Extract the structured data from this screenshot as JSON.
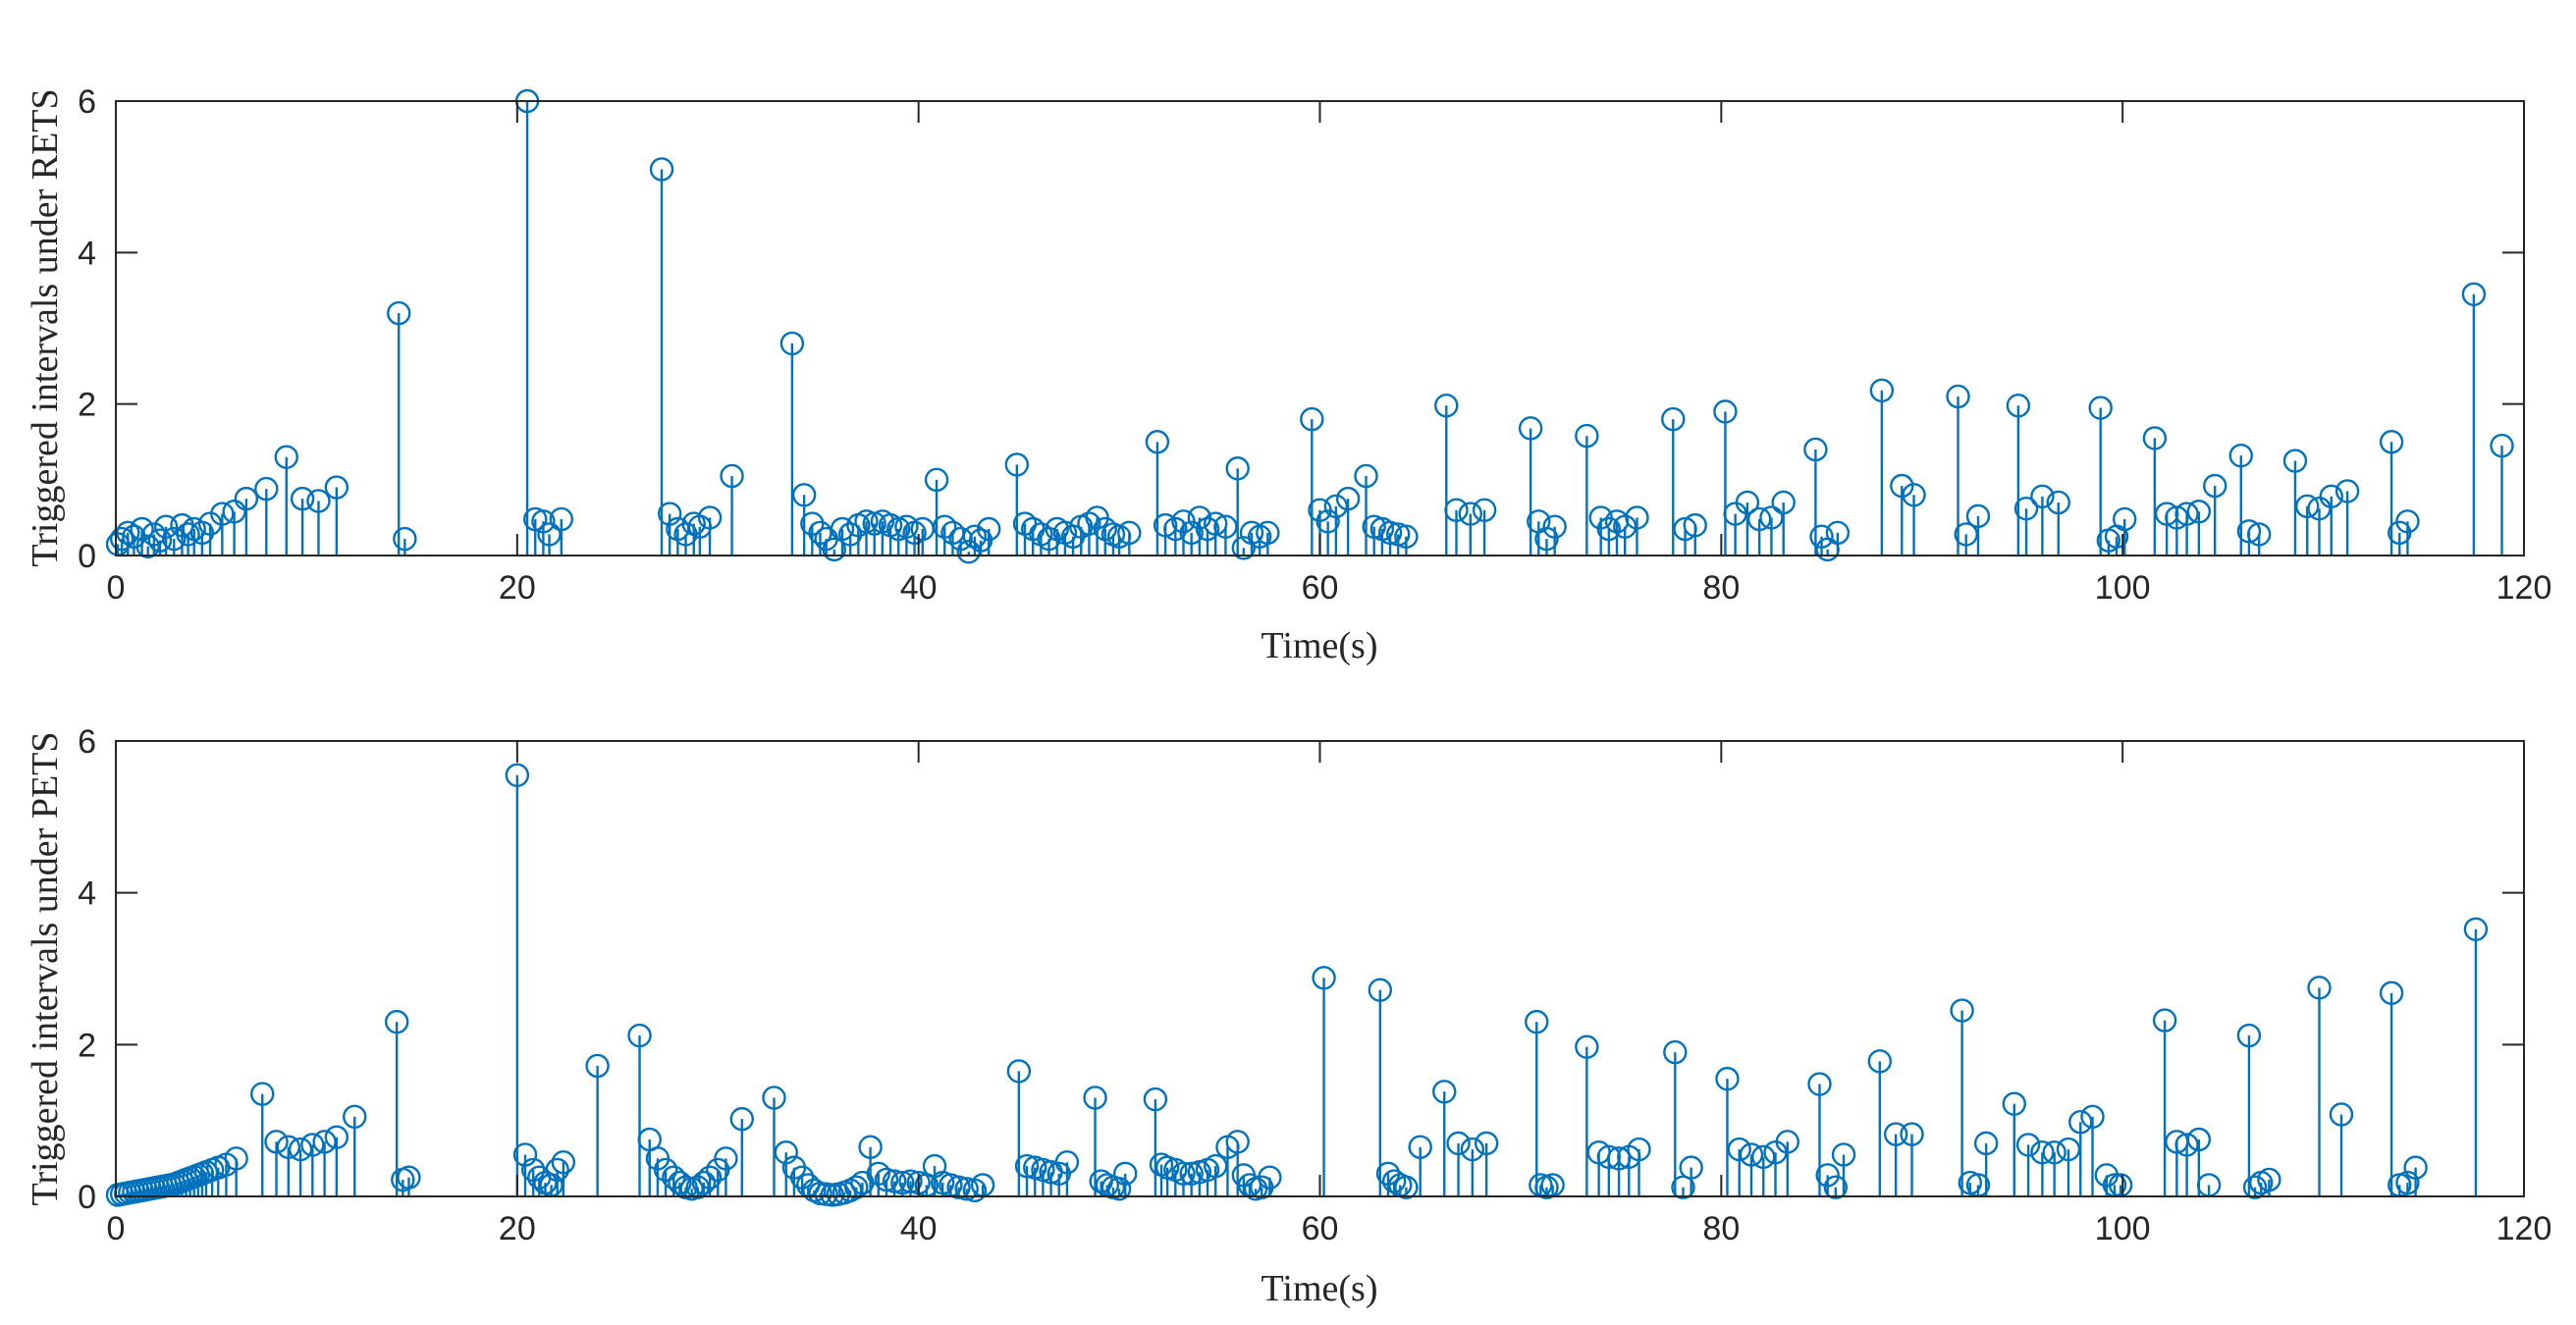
{
  "figure": {
    "series_color": "#0072BD",
    "axis_color": "#262626"
  },
  "chart_data": [
    {
      "type": "stem",
      "ylabel": "Triggered intervals under RETS",
      "xlabel": "Time(s)",
      "xlim": [
        0,
        120
      ],
      "ylim": [
        0,
        6
      ],
      "xticks": [
        0,
        20,
        40,
        60,
        80,
        100,
        120
      ],
      "yticks": [
        0,
        2,
        4,
        6
      ],
      "x": [
        0.1,
        0.3,
        0.6,
        0.9,
        1.3,
        1.6,
        1.9,
        2.2,
        2.5,
        2.9,
        3.3,
        3.6,
        3.9,
        4.3,
        4.7,
        5.3,
        5.9,
        6.5,
        7.5,
        8.5,
        9.3,
        10.1,
        11.0,
        14.1,
        14.4,
        20.5,
        20.9,
        21.3,
        21.6,
        22.2,
        27.2,
        27.6,
        28.0,
        28.4,
        28.8,
        29.1,
        29.6,
        30.7,
        33.7,
        34.3,
        34.7,
        35.1,
        35.4,
        35.8,
        36.2,
        36.6,
        37.0,
        37.4,
        37.8,
        38.2,
        38.6,
        39.0,
        39.4,
        39.8,
        40.2,
        40.9,
        41.3,
        41.7,
        42.1,
        42.5,
        42.8,
        43.1,
        43.5,
        44.9,
        45.3,
        45.7,
        46.1,
        46.5,
        46.9,
        47.3,
        47.7,
        48.1,
        48.5,
        48.9,
        49.3,
        49.7,
        50.0,
        50.5,
        51.9,
        52.3,
        52.8,
        53.2,
        53.6,
        54.0,
        54.4,
        54.8,
        55.3,
        55.9,
        56.2,
        56.6,
        57.0,
        57.4,
        59.6,
        60.0,
        60.4,
        60.8,
        61.4,
        62.3,
        62.7,
        63.1,
        63.5,
        63.9,
        64.3,
        66.3,
        66.8,
        67.5,
        68.2,
        70.5,
        70.9,
        71.3,
        71.7,
        73.3,
        74.0,
        74.4,
        74.8,
        75.2,
        75.8,
        77.6,
        78.2,
        78.7,
        80.2,
        80.7,
        81.3,
        81.9,
        82.5,
        83.1,
        84.7,
        85.0,
        85.3,
        85.8,
        88.0,
        89.0,
        89.6,
        91.8,
        92.2,
        92.8,
        94.8,
        95.2,
        96.0,
        96.8,
        98.9,
        99.3,
        99.7,
        100.1,
        101.6,
        102.2,
        102.7,
        103.2,
        103.8,
        104.6,
        105.9,
        106.3,
        106.8,
        108.6,
        109.2,
        109.8,
        110.4,
        111.2,
        113.4,
        113.8,
        114.2,
        117.5,
        118.9
      ],
      "y": [
        0.15,
        0.22,
        0.3,
        0.25,
        0.35,
        0.12,
        0.28,
        0.2,
        0.38,
        0.22,
        0.4,
        0.28,
        0.35,
        0.3,
        0.42,
        0.55,
        0.58,
        0.75,
        0.88,
        1.3,
        0.75,
        0.72,
        0.9,
        3.2,
        0.22,
        6.0,
        0.48,
        0.45,
        0.28,
        0.48,
        5.1,
        0.55,
        0.35,
        0.28,
        0.42,
        0.38,
        0.5,
        1.05,
        2.8,
        0.8,
        0.42,
        0.3,
        0.22,
        0.08,
        0.35,
        0.28,
        0.4,
        0.45,
        0.42,
        0.45,
        0.4,
        0.35,
        0.38,
        0.3,
        0.35,
        1.0,
        0.38,
        0.3,
        0.22,
        0.05,
        0.25,
        0.2,
        0.35,
        1.2,
        0.42,
        0.35,
        0.28,
        0.22,
        0.35,
        0.3,
        0.25,
        0.38,
        0.42,
        0.5,
        0.35,
        0.28,
        0.25,
        0.3,
        1.5,
        0.4,
        0.35,
        0.45,
        0.3,
        0.5,
        0.35,
        0.42,
        0.38,
        1.15,
        0.1,
        0.3,
        0.25,
        0.3,
        1.8,
        0.6,
        0.45,
        0.65,
        0.75,
        1.05,
        0.38,
        0.35,
        0.3,
        0.28,
        0.25,
        1.98,
        0.6,
        0.55,
        0.6,
        1.68,
        0.45,
        0.22,
        0.38,
        1.58,
        0.5,
        0.35,
        0.45,
        0.38,
        0.5,
        1.8,
        0.35,
        0.4,
        1.9,
        0.55,
        0.7,
        0.48,
        0.5,
        0.7,
        1.4,
        0.25,
        0.08,
        0.3,
        2.18,
        0.92,
        0.8,
        2.1,
        0.28,
        0.52,
        1.98,
        0.62,
        0.78,
        0.7,
        1.95,
        0.2,
        0.25,
        0.48,
        1.55,
        0.55,
        0.5,
        0.55,
        0.58,
        0.92,
        1.32,
        0.32,
        0.28,
        1.25,
        0.65,
        0.62,
        0.78,
        0.85,
        1.5,
        0.3,
        0.45,
        3.45,
        1.45
      ]
    },
    {
      "type": "stem",
      "ylabel": "Triggered intervals under PETS",
      "xlabel": "Time(s)",
      "xlim": [
        0,
        120
      ],
      "ylim": [
        0,
        6
      ],
      "xticks": [
        0,
        20,
        40,
        60,
        80,
        100,
        120
      ],
      "yticks": [
        0,
        2,
        4,
        6
      ],
      "x": [
        0.1,
        0.3,
        0.5,
        0.7,
        0.9,
        1.1,
        1.3,
        1.5,
        1.7,
        1.9,
        2.1,
        2.3,
        2.5,
        2.7,
        2.9,
        3.1,
        3.3,
        3.5,
        3.7,
        3.9,
        4.1,
        4.3,
        4.5,
        4.8,
        5.1,
        5.5,
        6.0,
        7.3,
        8.0,
        8.6,
        9.2,
        9.8,
        10.4,
        11.0,
        11.9,
        14.0,
        14.3,
        14.6,
        20.0,
        20.4,
        20.8,
        21.1,
        21.4,
        21.7,
        22.0,
        22.3,
        24.0,
        26.1,
        26.6,
        27.0,
        27.4,
        27.8,
        28.1,
        28.4,
        28.7,
        29.0,
        29.3,
        29.6,
        30.0,
        30.4,
        31.2,
        32.8,
        33.4,
        33.8,
        34.2,
        34.5,
        34.8,
        35.1,
        35.4,
        35.7,
        36.0,
        36.3,
        36.6,
        36.9,
        37.2,
        37.6,
        38.0,
        38.4,
        38.8,
        39.2,
        39.6,
        40.0,
        40.4,
        40.8,
        41.2,
        41.6,
        42.0,
        42.4,
        42.8,
        43.2,
        45.0,
        45.4,
        45.8,
        46.2,
        46.6,
        47.0,
        47.4,
        48.8,
        49.1,
        49.4,
        49.7,
        50.0,
        50.3,
        51.8,
        52.1,
        52.4,
        52.8,
        53.2,
        53.6,
        54.0,
        54.4,
        54.8,
        55.4,
        55.9,
        56.2,
        56.5,
        56.8,
        57.1,
        57.5,
        60.2,
        63.0,
        63.4,
        63.7,
        64.0,
        64.3,
        65.0,
        66.2,
        66.9,
        67.6,
        68.3,
        70.8,
        71.0,
        71.3,
        71.6,
        73.3,
        73.9,
        74.4,
        74.9,
        75.4,
        75.9,
        77.7,
        78.1,
        78.5,
        80.3,
        80.9,
        81.5,
        82.1,
        82.7,
        83.3,
        84.9,
        85.3,
        85.7,
        86.1,
        87.9,
        88.7,
        89.5,
        92.0,
        92.4,
        92.8,
        93.2,
        94.6,
        95.3,
        96.0,
        96.6,
        97.3,
        97.9,
        98.5,
        99.2,
        99.6,
        99.9,
        102.1,
        102.7,
        103.2,
        103.8,
        104.3,
        106.3,
        106.6,
        106.9,
        107.3,
        109.8,
        110.9,
        113.4,
        113.8,
        114.2,
        114.6,
        117.6
      ],
      "y": [
        0.02,
        0.03,
        0.04,
        0.05,
        0.06,
        0.07,
        0.08,
        0.09,
        0.1,
        0.11,
        0.12,
        0.13,
        0.14,
        0.15,
        0.16,
        0.18,
        0.2,
        0.22,
        0.24,
        0.26,
        0.28,
        0.3,
        0.32,
        0.35,
        0.38,
        0.42,
        0.5,
        1.35,
        0.72,
        0.65,
        0.62,
        0.68,
        0.72,
        0.78,
        1.05,
        2.3,
        0.22,
        0.25,
        5.55,
        0.55,
        0.35,
        0.25,
        0.18,
        0.15,
        0.35,
        0.45,
        1.72,
        2.12,
        0.75,
        0.5,
        0.35,
        0.25,
        0.18,
        0.12,
        0.1,
        0.12,
        0.18,
        0.25,
        0.35,
        0.5,
        1.02,
        1.3,
        0.58,
        0.38,
        0.25,
        0.15,
        0.08,
        0.04,
        0.03,
        0.02,
        0.03,
        0.05,
        0.08,
        0.12,
        0.18,
        0.65,
        0.3,
        0.22,
        0.2,
        0.18,
        0.2,
        0.18,
        0.15,
        0.4,
        0.18,
        0.15,
        0.12,
        0.1,
        0.08,
        0.15,
        1.65,
        0.4,
        0.38,
        0.35,
        0.32,
        0.3,
        0.45,
        1.3,
        0.2,
        0.15,
        0.12,
        0.1,
        0.3,
        1.28,
        0.42,
        0.38,
        0.35,
        0.3,
        0.3,
        0.32,
        0.35,
        0.4,
        0.65,
        0.72,
        0.28,
        0.15,
        0.1,
        0.12,
        0.25,
        2.88,
        2.72,
        0.3,
        0.2,
        0.15,
        0.12,
        0.65,
        1.38,
        0.7,
        0.62,
        0.7,
        2.3,
        0.15,
        0.12,
        0.15,
        1.97,
        0.58,
        0.52,
        0.5,
        0.52,
        0.62,
        1.9,
        0.12,
        0.38,
        1.55,
        0.62,
        0.55,
        0.52,
        0.58,
        0.72,
        1.48,
        0.28,
        0.12,
        0.55,
        1.78,
        0.82,
        0.82,
        2.45,
        0.18,
        0.15,
        0.7,
        1.22,
        0.68,
        0.58,
        0.58,
        0.62,
        0.98,
        1.05,
        0.28,
        0.15,
        0.15,
        2.32,
        0.72,
        0.68,
        0.75,
        0.15,
        2.12,
        0.12,
        0.18,
        0.22,
        2.75,
        1.08,
        2.68,
        0.15,
        0.18,
        0.38,
        3.52
      ]
    }
  ]
}
